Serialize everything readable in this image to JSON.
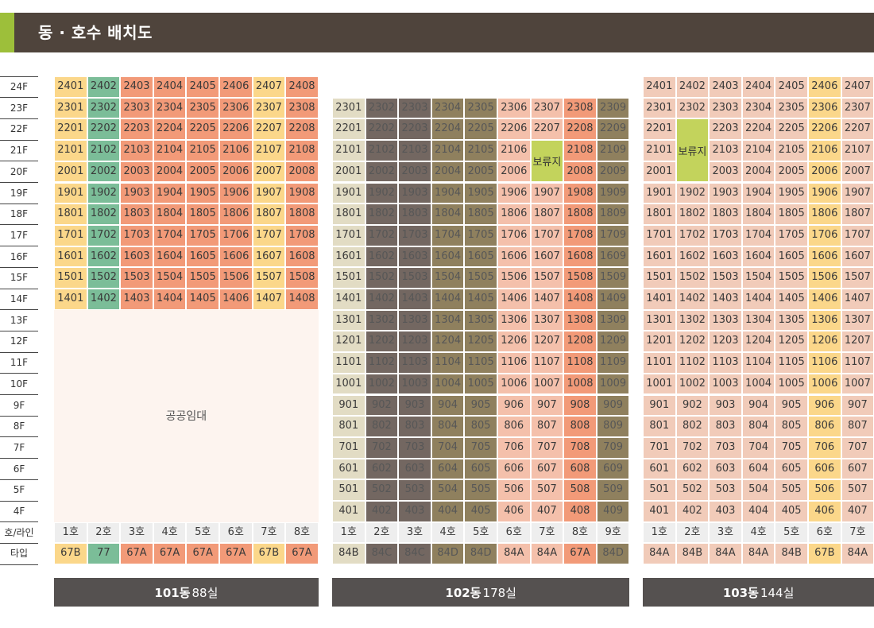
{
  "header": {
    "title": "동 · 호수 배치도"
  },
  "floors": [
    "24F",
    "23F",
    "22F",
    "21F",
    "20F",
    "19F",
    "18F",
    "17F",
    "16F",
    "15F",
    "14F",
    "13F",
    "12F",
    "11F",
    "10F",
    "9F",
    "8F",
    "7F",
    "6F",
    "5F",
    "4F"
  ],
  "row_labels": {
    "line": "호/라인",
    "type": "타입"
  },
  "colors": {
    "yellow": "#fbd78a",
    "green": "#7bbd98",
    "orange": "#f29a78",
    "beige": "#e2dcc4",
    "darkgray": "#736761",
    "olive": "#8f805e",
    "pink": "#f4c0ab",
    "lightpink": "#f1cbb9",
    "special": "#c3d35c",
    "public": "#fdf4ef",
    "header_bg": "#4f443c",
    "accent": "#9dbf3a",
    "footer_bg": "#555150",
    "row_bg": "#eeeeee"
  },
  "buildings": [
    {
      "name": "101동",
      "count": "88실",
      "top_floor": 24,
      "bottom_floor": 14,
      "lines": [
        {
          "label": "1호",
          "type": "67B",
          "color": "yellow"
        },
        {
          "label": "2호",
          "type": "77",
          "color": "green"
        },
        {
          "label": "3호",
          "type": "67A",
          "color": "orange"
        },
        {
          "label": "4호",
          "type": "67A",
          "color": "orange"
        },
        {
          "label": "5호",
          "type": "67A",
          "color": "orange"
        },
        {
          "label": "6호",
          "type": "67A",
          "color": "orange"
        },
        {
          "label": "7호",
          "type": "67B",
          "color": "yellow"
        },
        {
          "label": "8호",
          "type": "67A",
          "color": "orange"
        }
      ],
      "public_label": "공공임대",
      "specials": []
    },
    {
      "name": "102동",
      "count": "178실",
      "top_floor": 23,
      "bottom_floor": 4,
      "lines": [
        {
          "label": "1호",
          "type": "84B",
          "color": "beige"
        },
        {
          "label": "2호",
          "type": "84C",
          "color": "darkgray"
        },
        {
          "label": "3호",
          "type": "84C",
          "color": "darkgray"
        },
        {
          "label": "4호",
          "type": "84D",
          "color": "olive"
        },
        {
          "label": "5호",
          "type": "84D",
          "color": "olive"
        },
        {
          "label": "6호",
          "type": "84A",
          "color": "pink"
        },
        {
          "label": "7호",
          "type": "84A",
          "color": "pink"
        },
        {
          "label": "8호",
          "type": "67A",
          "color": "orange"
        },
        {
          "label": "9호",
          "type": "84D",
          "color": "olive"
        }
      ],
      "public_label": "",
      "specials": [
        {
          "label": "보류지",
          "line": 6,
          "from": 20,
          "to": 21
        }
      ]
    },
    {
      "name": "103동",
      "count": "144실",
      "top_floor": 24,
      "bottom_floor": 4,
      "lines": [
        {
          "label": "1호",
          "type": "84A",
          "color": "lightpink"
        },
        {
          "label": "2호",
          "type": "84B",
          "color": "lightpink"
        },
        {
          "label": "3호",
          "type": "84A",
          "color": "lightpink"
        },
        {
          "label": "4호",
          "type": "84A",
          "color": "lightpink"
        },
        {
          "label": "5호",
          "type": "84B",
          "color": "lightpink"
        },
        {
          "label": "6호",
          "type": "67B",
          "color": "yellow"
        },
        {
          "label": "7호",
          "type": "84A",
          "color": "lightpink"
        }
      ],
      "public_label": "",
      "specials": [
        {
          "label": "보류지",
          "line": 1,
          "from": 20,
          "to": 22
        }
      ]
    }
  ]
}
